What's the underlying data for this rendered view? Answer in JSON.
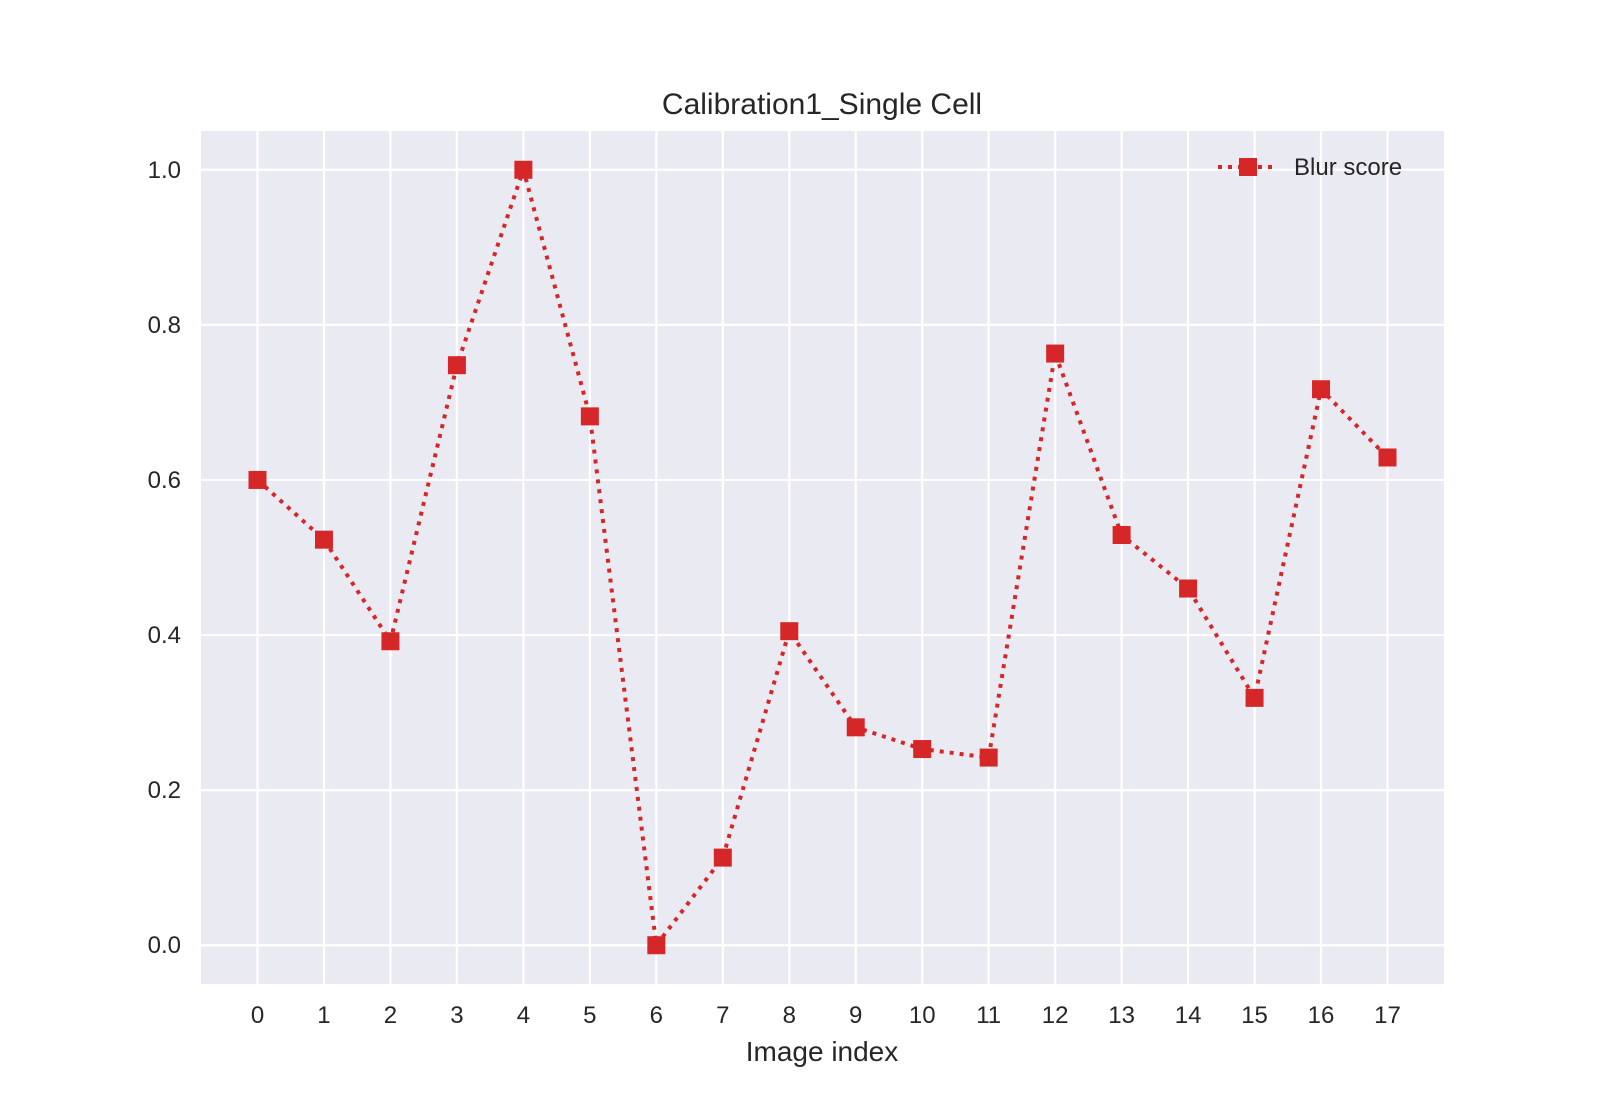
{
  "chart_data": {
    "type": "line",
    "title": "Calibration1_Single Cell",
    "xlabel": "Image index",
    "ylabel": "",
    "x": [
      0,
      1,
      2,
      3,
      4,
      5,
      6,
      7,
      8,
      9,
      10,
      11,
      12,
      13,
      14,
      15,
      16,
      17
    ],
    "xticks": [
      "0",
      "1",
      "2",
      "3",
      "4",
      "5",
      "6",
      "7",
      "8",
      "9",
      "10",
      "11",
      "12",
      "13",
      "14",
      "15",
      "16",
      "17"
    ],
    "yticks": [
      "0.0",
      "0.2",
      "0.4",
      "0.6",
      "0.8",
      "1.0"
    ],
    "xlim": [
      -0.85,
      17.85
    ],
    "ylim": [
      -0.05,
      1.05
    ],
    "series": [
      {
        "name": "Blur score",
        "color": "#d62728",
        "line_style": "dotted",
        "marker": "square",
        "values": [
          0.6,
          0.523,
          0.392,
          0.748,
          1.0,
          0.682,
          0.0,
          0.113,
          0.405,
          0.281,
          0.253,
          0.242,
          0.763,
          0.529,
          0.46,
          0.319,
          0.717,
          0.629
        ]
      }
    ],
    "grid": true,
    "legend": "top-right",
    "style": {
      "axes_background": "#eaeaf2",
      "grid_color": "#ffffff"
    }
  }
}
